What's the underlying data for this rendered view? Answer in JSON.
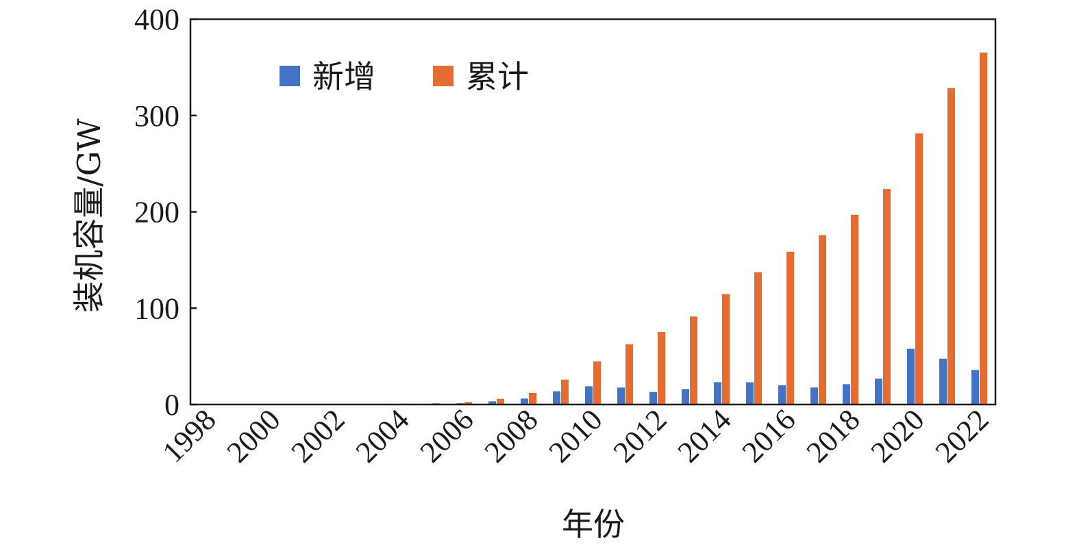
{
  "chart_data": {
    "type": "bar",
    "categories": [
      "1998",
      "1999",
      "2000",
      "2001",
      "2002",
      "2003",
      "2004",
      "2005",
      "2006",
      "2007",
      "2008",
      "2009",
      "2010",
      "2011",
      "2012",
      "2013",
      "2014",
      "2015",
      "2016",
      "2017",
      "2018",
      "2019",
      "2020",
      "2021",
      "2022"
    ],
    "x_tick_labels": [
      "1998",
      "2000",
      "2002",
      "2004",
      "2006",
      "2008",
      "2010",
      "2012",
      "2014",
      "2016",
      "2018",
      "2020",
      "2022"
    ],
    "series": [
      {
        "name": "新增",
        "color": "#4472c4",
        "values": [
          0.1,
          0.1,
          0.1,
          0.1,
          0.1,
          0.1,
          0.2,
          0.5,
          1.3,
          3.3,
          6.2,
          13.8,
          18.9,
          17.6,
          13,
          16.1,
          23.2,
          23.1,
          20,
          17.7,
          21.1,
          26.8,
          57.8,
          47.6,
          35.8
        ]
      },
      {
        "name": "累计",
        "color": "#e46c33",
        "values": [
          0.2,
          0.3,
          0.4,
          0.4,
          0.5,
          0.6,
          0.8,
          1.3,
          2.6,
          5.9,
          12.1,
          25.8,
          44.7,
          62.4,
          75.3,
          91.4,
          114.6,
          137.4,
          158.6,
          175.8,
          196.9,
          223.7,
          281.5,
          328.5,
          365.4
        ]
      }
    ],
    "xlabel": "年份",
    "ylabel": "装机容量/GW",
    "ylim": [
      0,
      400
    ],
    "yticks": [
      0,
      100,
      200,
      300,
      400
    ],
    "legend_position": "top-left",
    "grid": false
  }
}
